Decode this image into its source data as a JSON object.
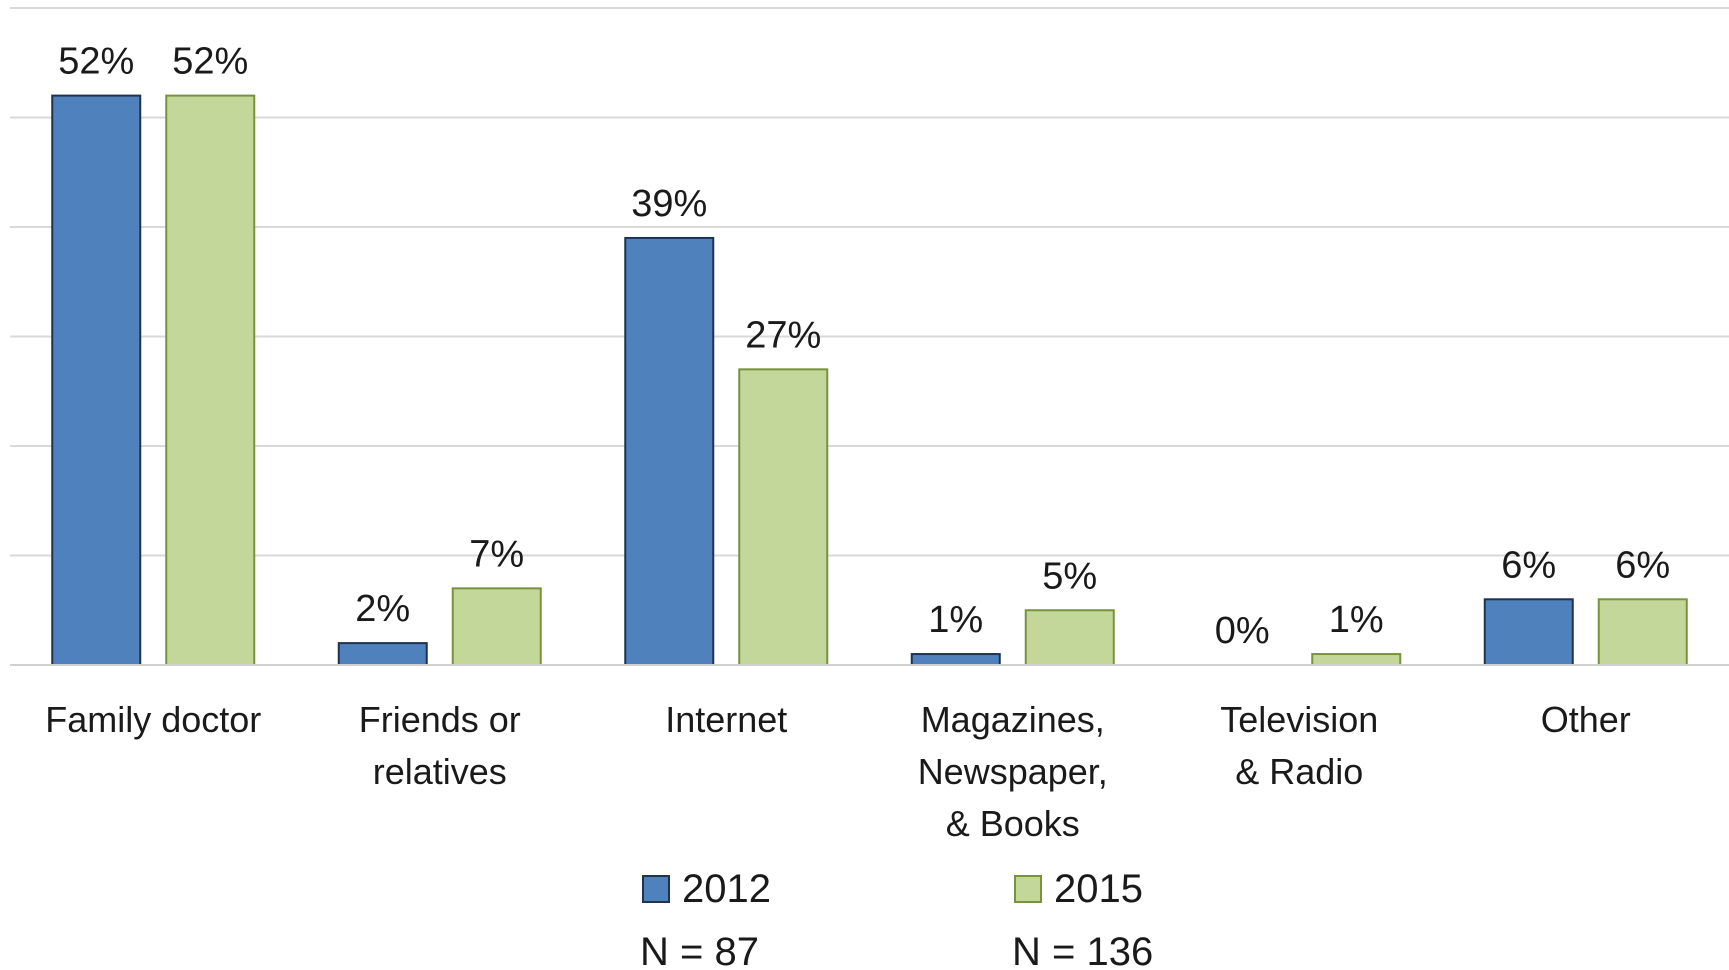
{
  "chart_data": {
    "type": "bar",
    "categories": [
      [
        "Family doctor"
      ],
      [
        "Friends or",
        "relatives"
      ],
      [
        "Internet"
      ],
      [
        "Magazines,",
        "Newspaper,",
        "& Books"
      ],
      [
        "Television",
        "& Radio"
      ],
      [
        "Other"
      ]
    ],
    "series": [
      {
        "name": "2012",
        "sample": "N = 87",
        "color": "#4f81bd",
        "border": "#1f3350",
        "values": [
          52,
          2,
          39,
          1,
          0,
          6
        ],
        "labels": [
          "52%",
          "2%",
          "39%",
          "1%",
          "0%",
          "6%"
        ]
      },
      {
        "name": "2015",
        "sample": "N = 136",
        "color": "#c4d79b",
        "border": "#77933c",
        "values": [
          52,
          7,
          27,
          5,
          1,
          6
        ],
        "labels": [
          "52%",
          "7%",
          "27%",
          "5%",
          "1%",
          "6%"
        ]
      }
    ],
    "ylim": [
      0,
      60
    ],
    "gridlines": true,
    "legend_position": "bottom",
    "title": "",
    "xlabel": "",
    "ylabel": ""
  }
}
